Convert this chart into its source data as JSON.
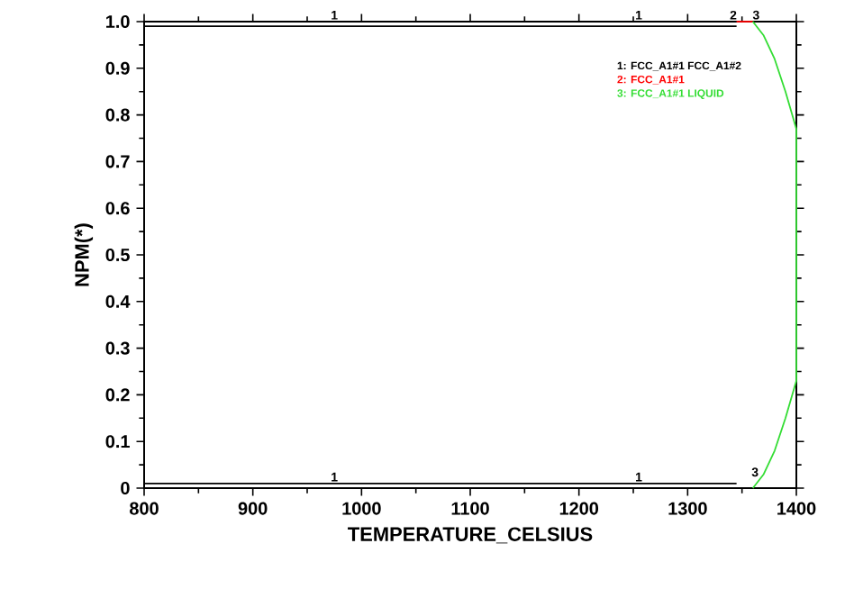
{
  "chart_data": {
    "type": "line",
    "xlabel": "TEMPERATURE_CELSIUS",
    "ylabel": "NPM(*)",
    "xlim": [
      800,
      1400
    ],
    "ylim": [
      0,
      1.0
    ],
    "xticks": [
      800,
      900,
      1000,
      1100,
      1200,
      1300,
      1400
    ],
    "yticks": [
      {
        "value": 0,
        "label": "0"
      },
      0.1,
      0.2,
      0.3,
      0.4,
      0.5,
      0.6,
      0.7,
      0.8,
      0.9,
      {
        "value": 1.0,
        "label": "1.0"
      }
    ],
    "legend": "top right",
    "marker": "none",
    "line_style": "solid",
    "grid": false,
    "series": [
      {
        "name": "1: FCC_A1#1 FCC_A1#2",
        "color": "#000000",
        "x": [
          800,
          1345
        ],
        "values": [
          0.99,
          0.99
        ]
      },
      {
        "color": "#000000",
        "x": [
          800,
          1345
        ],
        "values": [
          0.01,
          0.01
        ]
      },
      {
        "name": "2: FCC_A1#1",
        "color": "#ff0000",
        "x": [
          1345,
          1360
        ],
        "values": [
          1.0,
          1.0
        ]
      },
      {
        "name": "3: FCC_A1#1 LIQUID",
        "color": "#33dd33",
        "x": [
          1360,
          1370,
          1380,
          1390,
          1400,
          1400,
          1390,
          1380,
          1370,
          1360
        ],
        "values": [
          1.0,
          0.97,
          0.92,
          0.85,
          0.77,
          0.23,
          0.15,
          0.08,
          0.03,
          0.0
        ]
      }
    ],
    "annotations": [
      {
        "text": "1",
        "x": 975,
        "y": 1.0
      },
      {
        "text": "1",
        "x": 1255,
        "y": 1.0
      },
      {
        "text": "2",
        "x": 1342,
        "y": 1.0
      },
      {
        "text": "3",
        "x": 1363,
        "y": 1.0
      },
      {
        "text": "1",
        "x": 975,
        "y": 0.01
      },
      {
        "text": "1",
        "x": 1255,
        "y": 0.01
      },
      {
        "text": "3",
        "x": 1362,
        "y": 0.02
      }
    ]
  }
}
